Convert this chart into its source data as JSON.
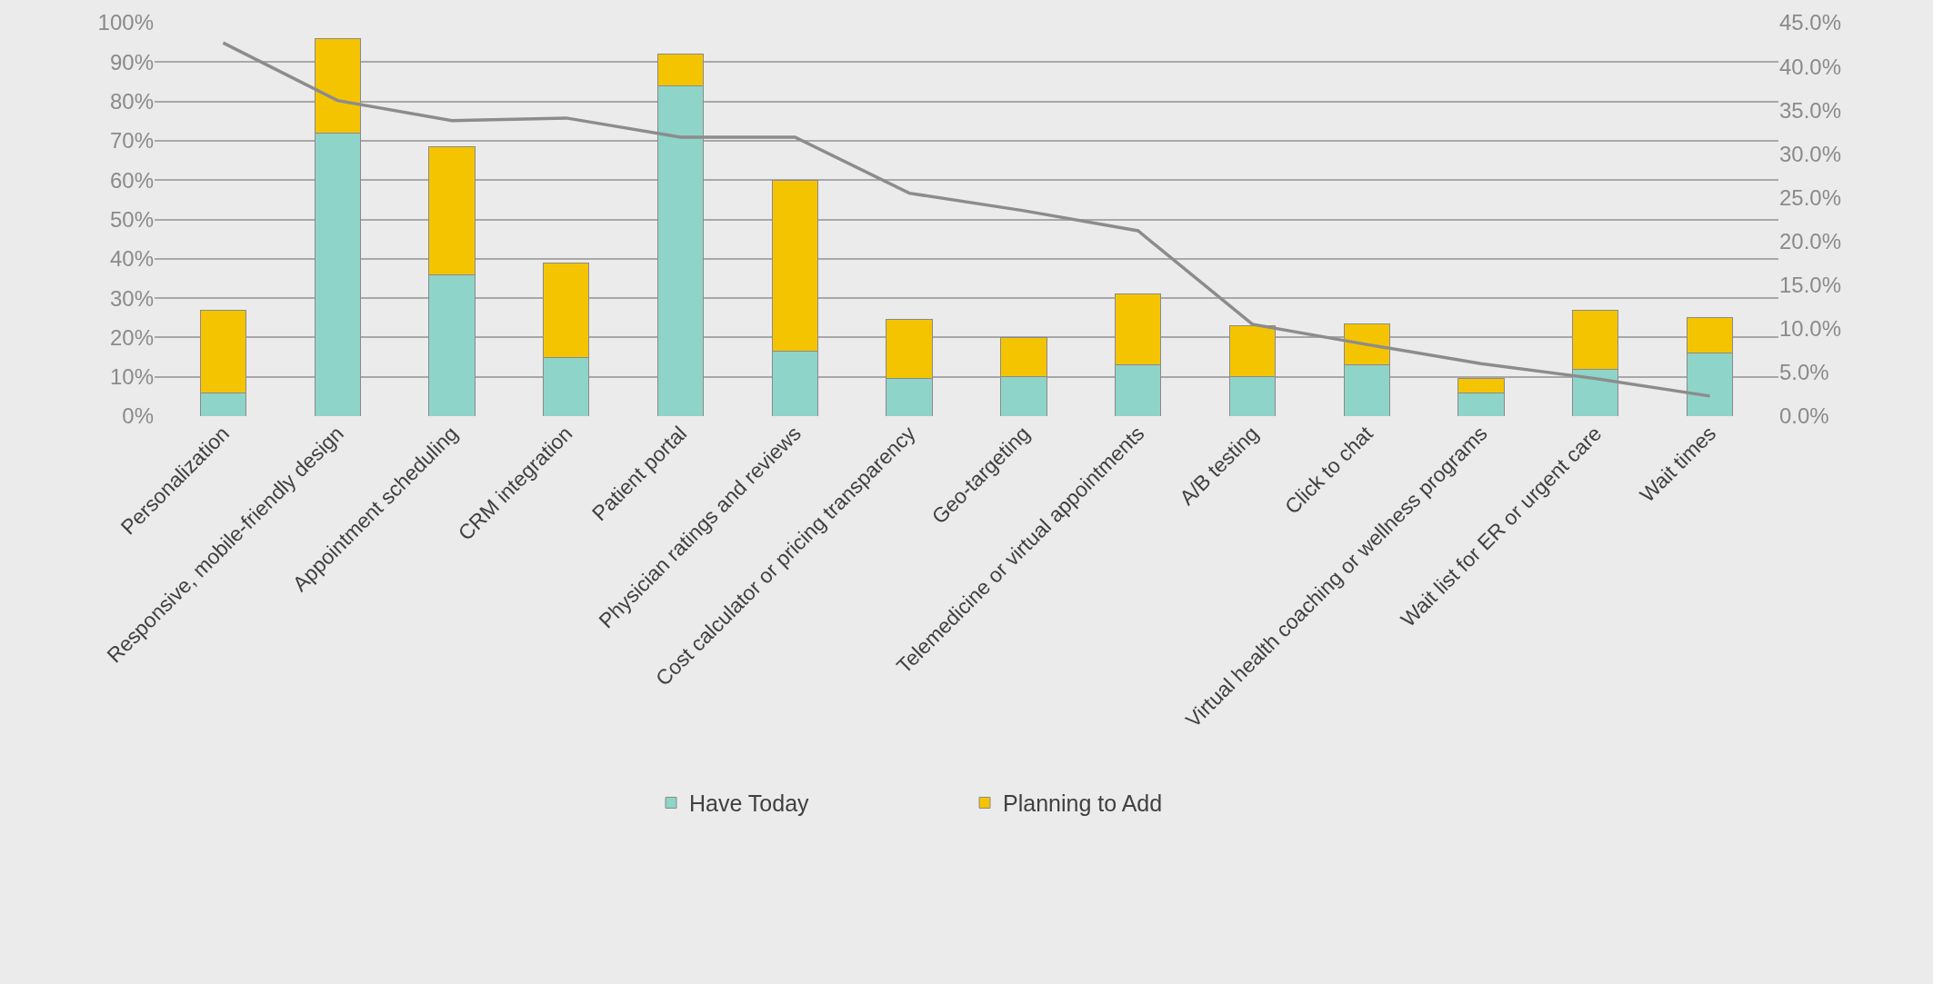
{
  "chart_data": {
    "type": "bar",
    "stacked": true,
    "categories": [
      "Personalization",
      "Responsive, mobile-friendly design",
      "Appointment scheduling",
      "CRM integration",
      "Patient portal",
      "Physician ratings and reviews",
      "Cost calculator or pricing transparency",
      "Geo-targeting",
      "Telemedicine or virtual appointments",
      "A/B testing",
      "Click to chat",
      "Virtual health coaching or wellness programs",
      "Wait list for ER or urgent care",
      "Wait times"
    ],
    "series": [
      {
        "name": "Have Today",
        "color": "#8fd4c8",
        "values": [
          6,
          72,
          36,
          15,
          84,
          16.5,
          9.5,
          10,
          13,
          10,
          13,
          6,
          12,
          16
        ]
      },
      {
        "name": "Planning to Add",
        "color": "#f5c400",
        "values": [
          21,
          24,
          32.5,
          24,
          8,
          43.5,
          15,
          10,
          18,
          13,
          10.5,
          3.5,
          15,
          9
        ]
      },
      {
        "type": "line",
        "axis": "y2",
        "color": "#8c8c8c",
        "values": [
          42.7,
          36.1,
          33.8,
          34.1,
          31.9,
          31.9,
          25.5,
          23.5,
          21.2,
          10.5,
          8.2,
          6.0,
          4.3,
          2.3
        ]
      }
    ],
    "ylim": [
      0,
      100
    ],
    "yticks": [
      {
        "value": 0,
        "label": "0%"
      },
      {
        "value": 10,
        "label": "10%"
      },
      {
        "value": 20,
        "label": "20%"
      },
      {
        "value": 30,
        "label": "30%"
      },
      {
        "value": 40,
        "label": "40%"
      },
      {
        "value": 50,
        "label": "50%"
      },
      {
        "value": 60,
        "label": "60%"
      },
      {
        "value": 70,
        "label": "70%"
      },
      {
        "value": 80,
        "label": "80%"
      },
      {
        "value": 90,
        "label": "90%"
      },
      {
        "value": 100,
        "label": "100%"
      }
    ],
    "y2lim": [
      0,
      45
    ],
    "y2ticks": [
      {
        "value": 0,
        "label": "0.0%"
      },
      {
        "value": 5,
        "label": "5.0%"
      },
      {
        "value": 10,
        "label": "10.0%"
      },
      {
        "value": 15,
        "label": "15.0%"
      },
      {
        "value": 20,
        "label": "20.0%"
      },
      {
        "value": 25,
        "label": "25.0%"
      },
      {
        "value": 30,
        "label": "30.0%"
      },
      {
        "value": 35,
        "label": "35.0%"
      },
      {
        "value": 40,
        "label": "40.0%"
      },
      {
        "value": 45,
        "label": "45.0%"
      }
    ],
    "grid": "y",
    "legend": "bottom"
  }
}
